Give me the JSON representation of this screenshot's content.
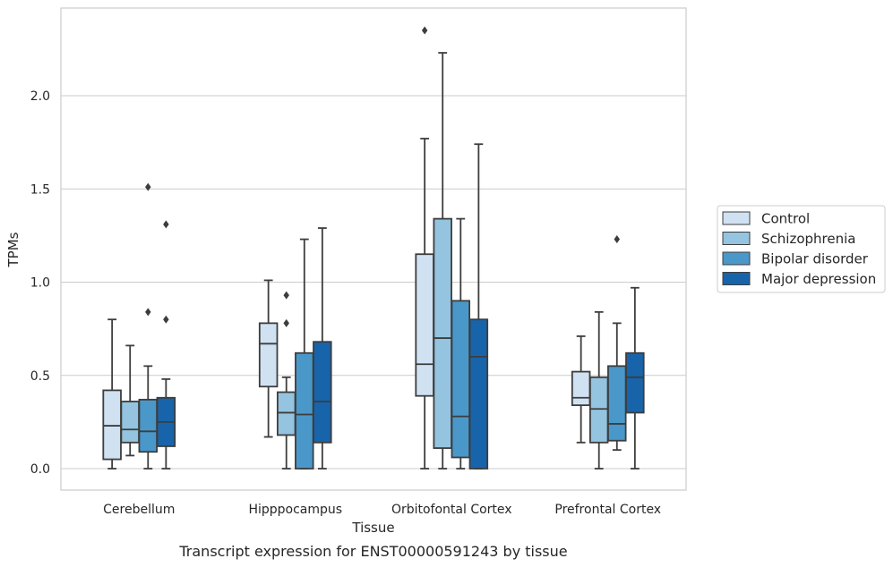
{
  "chart_data": {
    "type": "box",
    "xlabel": "Tissue",
    "ylabel": "TPMs",
    "caption": "Transcript expression for ENST00000591243 by tissue",
    "ylim": [
      -0.11,
      2.48
    ],
    "yticks": [
      0.0,
      0.5,
      1.0,
      1.5,
      2.0
    ],
    "ytick_labels": [
      "0.0",
      "0.5",
      "1.0",
      "1.5",
      "2.0"
    ],
    "grid": "horizontal",
    "legend_position": "right-outside",
    "categories": [
      "Cerebellum",
      "Hipppocampus",
      "Orbitofontal Cortex",
      "Prefrontal Cortex"
    ],
    "series": [
      {
        "name": "Control",
        "color": "#d0e1f2",
        "boxes": [
          {
            "whislo": 0.0,
            "q1": 0.05,
            "med": 0.23,
            "q3": 0.42,
            "whishi": 0.8,
            "fliers": []
          },
          {
            "whislo": 0.17,
            "q1": 0.44,
            "med": 0.67,
            "q3": 0.78,
            "whishi": 1.01,
            "fliers": []
          },
          {
            "whislo": 0.0,
            "q1": 0.39,
            "med": 0.56,
            "q3": 1.15,
            "whishi": 1.77,
            "fliers": [
              2.35
            ]
          },
          {
            "whislo": 0.14,
            "q1": 0.34,
            "med": 0.38,
            "q3": 0.52,
            "whishi": 0.71,
            "fliers": []
          }
        ]
      },
      {
        "name": "Schizophrenia",
        "color": "#94c4df",
        "boxes": [
          {
            "whislo": 0.07,
            "q1": 0.14,
            "med": 0.21,
            "q3": 0.36,
            "whishi": 0.66,
            "fliers": []
          },
          {
            "whislo": 0.0,
            "q1": 0.18,
            "med": 0.3,
            "q3": 0.41,
            "whishi": 0.49,
            "fliers": [
              0.93,
              0.78
            ]
          },
          {
            "whislo": 0.0,
            "q1": 0.11,
            "med": 0.7,
            "q3": 1.34,
            "whishi": 2.23,
            "fliers": []
          },
          {
            "whislo": 0.0,
            "q1": 0.14,
            "med": 0.32,
            "q3": 0.49,
            "whishi": 0.84,
            "fliers": []
          }
        ]
      },
      {
        "name": "Bipolar disorder",
        "color": "#4a98c9",
        "boxes": [
          {
            "whislo": 0.0,
            "q1": 0.09,
            "med": 0.2,
            "q3": 0.37,
            "whishi": 0.55,
            "fliers": [
              0.84,
              1.51
            ]
          },
          {
            "whislo": 0.0,
            "q1": 0.0,
            "med": 0.29,
            "q3": 0.62,
            "whishi": 1.23,
            "fliers": []
          },
          {
            "whislo": 0.0,
            "q1": 0.06,
            "med": 0.28,
            "q3": 0.9,
            "whishi": 1.34,
            "fliers": []
          },
          {
            "whislo": 0.1,
            "q1": 0.15,
            "med": 0.24,
            "q3": 0.55,
            "whishi": 0.78,
            "fliers": [
              1.23
            ]
          }
        ]
      },
      {
        "name": "Major depression",
        "color": "#1764ab",
        "boxes": [
          {
            "whislo": 0.0,
            "q1": 0.12,
            "med": 0.25,
            "q3": 0.38,
            "whishi": 0.48,
            "fliers": [
              0.8,
              1.31
            ]
          },
          {
            "whislo": 0.0,
            "q1": 0.14,
            "med": 0.36,
            "q3": 0.68,
            "whishi": 1.29,
            "fliers": []
          },
          {
            "whislo": 0.0,
            "q1": 0.0,
            "med": 0.6,
            "q3": 0.8,
            "whishi": 1.74,
            "fliers": []
          },
          {
            "whislo": 0.0,
            "q1": 0.3,
            "med": 0.49,
            "q3": 0.62,
            "whishi": 0.97,
            "fliers": []
          }
        ]
      }
    ]
  }
}
